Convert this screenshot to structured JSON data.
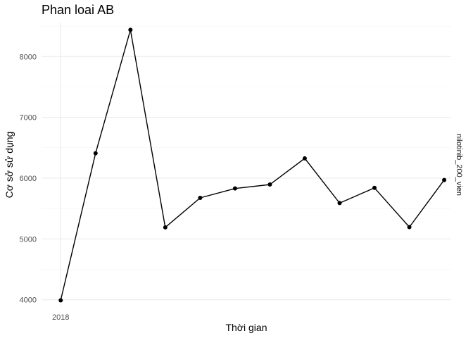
{
  "chart_data": {
    "type": "line",
    "title": "Phan loai AB",
    "xlabel": "Thời gian",
    "ylabel": "Cơ sở sử dụng",
    "facet_label": "nilotinib_200_vien",
    "x_tick_labels": [
      {
        "x": 0,
        "label": "2018"
      }
    ],
    "y_ticks": [
      4000,
      5000,
      6000,
      7000,
      8000
    ],
    "ylim": [
      3880,
      8560
    ],
    "xlim": [
      -0.55,
      11.2
    ],
    "grid": true,
    "legend": "none",
    "series": [
      {
        "color": "#000000",
        "x": [
          0,
          1,
          2,
          3,
          4,
          5,
          6,
          7,
          8,
          9,
          10,
          11
        ],
        "values": [
          3990,
          6410,
          8440,
          5190,
          5675,
          5830,
          5895,
          6325,
          5590,
          5840,
          5195,
          5970
        ]
      }
    ]
  }
}
